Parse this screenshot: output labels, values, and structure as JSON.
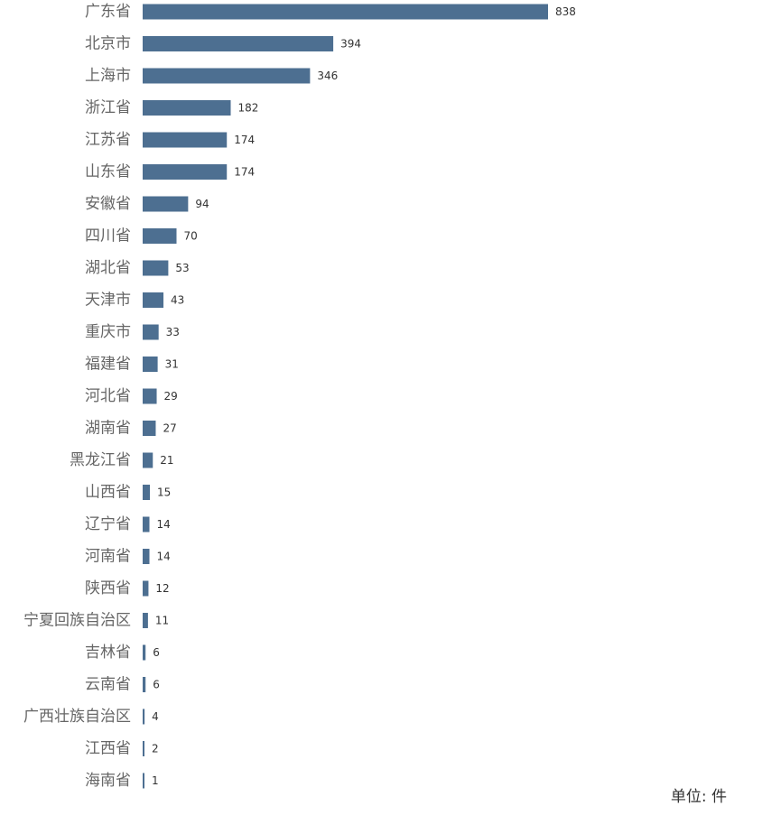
{
  "chart_data": {
    "type": "bar",
    "orientation": "horizontal",
    "categories": [
      "广东省",
      "北京市",
      "上海市",
      "浙江省",
      "江苏省",
      "山东省",
      "安徽省",
      "四川省",
      "湖北省",
      "天津市",
      "重庆市",
      "福建省",
      "河北省",
      "湖南省",
      "黑龙江省",
      "山西省",
      "辽宁省",
      "河南省",
      "陕西省",
      "宁夏回族自治区",
      "吉林省",
      "云南省",
      "广西壮族自治区",
      "江西省",
      "海南省"
    ],
    "values": [
      838,
      394,
      346,
      182,
      174,
      174,
      94,
      70,
      53,
      43,
      33,
      31,
      29,
      27,
      21,
      15,
      14,
      14,
      12,
      11,
      6,
      6,
      4,
      2,
      1
    ],
    "bar_color": "#4d6f91",
    "xlim": [
      0,
      838
    ],
    "grid": false,
    "unit_note": "单位: 件"
  }
}
